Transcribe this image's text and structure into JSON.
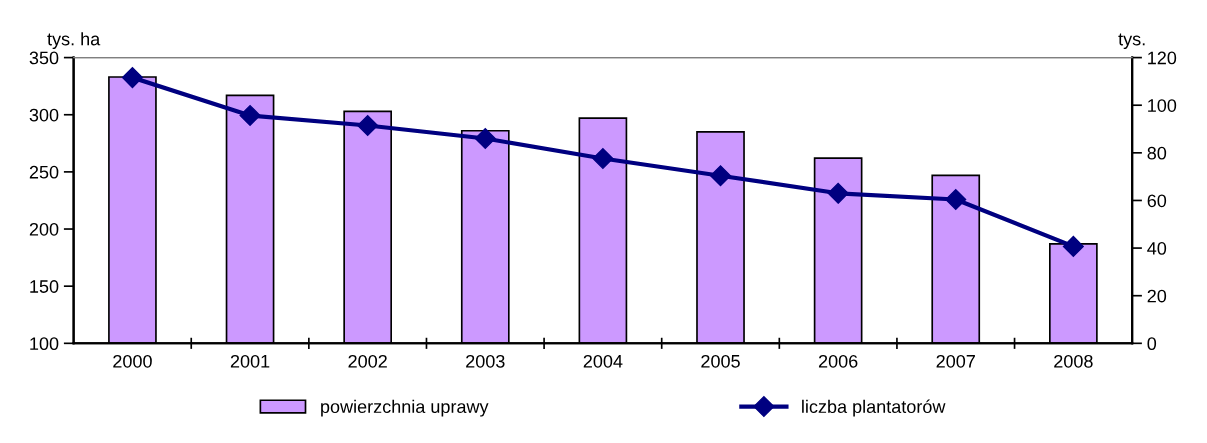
{
  "chart_data": {
    "type": "bar",
    "ylabel": "tys. ha",
    "y2label": "tys.",
    "categories": [
      "2000",
      "2001",
      "2002",
      "2003",
      "2004",
      "2005",
      "2006",
      "2007",
      "2008"
    ],
    "series": [
      {
        "name": "powierzchnia uprawy",
        "color": "#cc99ff",
        "values": [
          333,
          317,
          303,
          286,
          297,
          285,
          262,
          247,
          187
        ]
      },
      {
        "name": "liczba plantatorów",
        "type": "line",
        "axis": "y2",
        "color": "#000080",
        "values": [
          111.6,
          95.7,
          91.5,
          86,
          77.6,
          70.4,
          63,
          60.4,
          40.7
        ]
      }
    ],
    "ylim": [
      100,
      350
    ],
    "yticks": [
      100,
      150,
      200,
      250,
      300,
      350
    ],
    "y2lim": [
      0,
      120
    ],
    "y2ticks": [
      0,
      20,
      40,
      60,
      80,
      100,
      120
    ],
    "marker": "diamond",
    "line_style": "solid",
    "grid": false,
    "legend": "bottom"
  }
}
